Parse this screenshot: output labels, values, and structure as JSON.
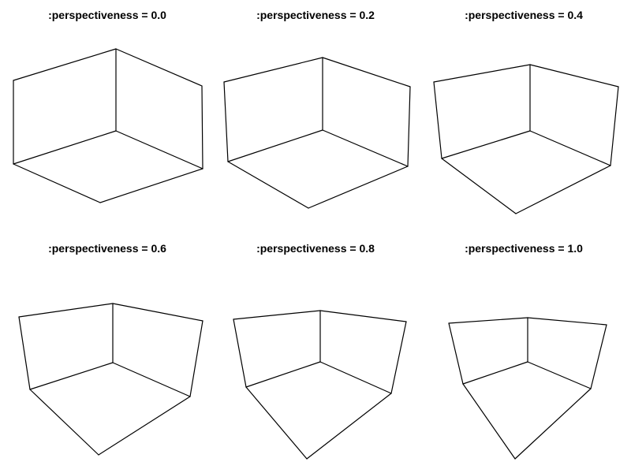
{
  "panels": [
    {
      "title": ":perspectiveness = 0.0",
      "perspectiveness": 0.0
    },
    {
      "title": ":perspectiveness = 0.2",
      "perspectiveness": 0.2
    },
    {
      "title": ":perspectiveness = 0.4",
      "perspectiveness": 0.4
    },
    {
      "title": ":perspectiveness = 0.6",
      "perspectiveness": 0.6
    },
    {
      "title": ":perspectiveness = 0.8",
      "perspectiveness": 0.8
    },
    {
      "title": ":perspectiveness = 1.0",
      "perspectiveness": 1.0
    }
  ],
  "colors": {
    "background": "#ffffff",
    "line": "#000000",
    "title": "#000000"
  }
}
